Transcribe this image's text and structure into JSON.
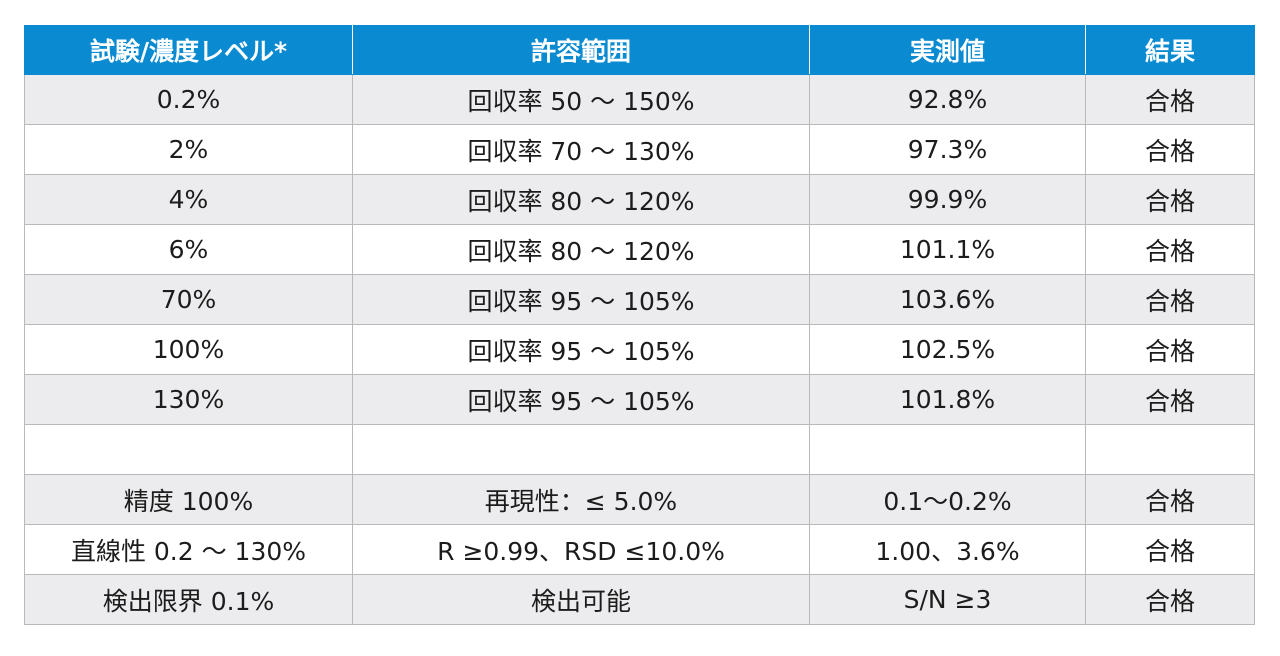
{
  "table": {
    "headers": [
      "試験/濃度レベル*",
      "許容範囲",
      "実測値",
      "結果"
    ],
    "rows": [
      [
        "0.2%",
        "回収率 50 〜 150%",
        "92.8%",
        "合格"
      ],
      [
        "2%",
        "回収率 70 〜 130%",
        "97.3%",
        "合格"
      ],
      [
        "4%",
        "回収率 80 〜 120%",
        "99.9%",
        "合格"
      ],
      [
        "6%",
        "回収率 80 〜 120%",
        "101.1%",
        "合格"
      ],
      [
        "70%",
        "回収率 95 〜 105%",
        "103.6%",
        "合格"
      ],
      [
        "100%",
        "回収率 95 〜 105%",
        "102.5%",
        "合格"
      ],
      [
        "130%",
        "回収率 95 〜 105%",
        "101.8%",
        "合格"
      ],
      [
        "",
        "",
        "",
        ""
      ],
      [
        "精度 100%",
        "再現性：≤ 5.0%",
        "0.1〜0.2%",
        "合格"
      ],
      [
        "直線性 0.2 〜 130%",
        "R ≥0.99、RSD ≤10.0%",
        "1.00、3.6%",
        "合格"
      ],
      [
        "検出限界 0.1%",
        "検出可能",
        "S/N ≥3",
        "合格"
      ]
    ]
  },
  "colors": {
    "header_background": "#0a8ad1",
    "header_text": "#ffffff",
    "stripe_background": "#ececee",
    "border": "#b9b9b9"
  }
}
